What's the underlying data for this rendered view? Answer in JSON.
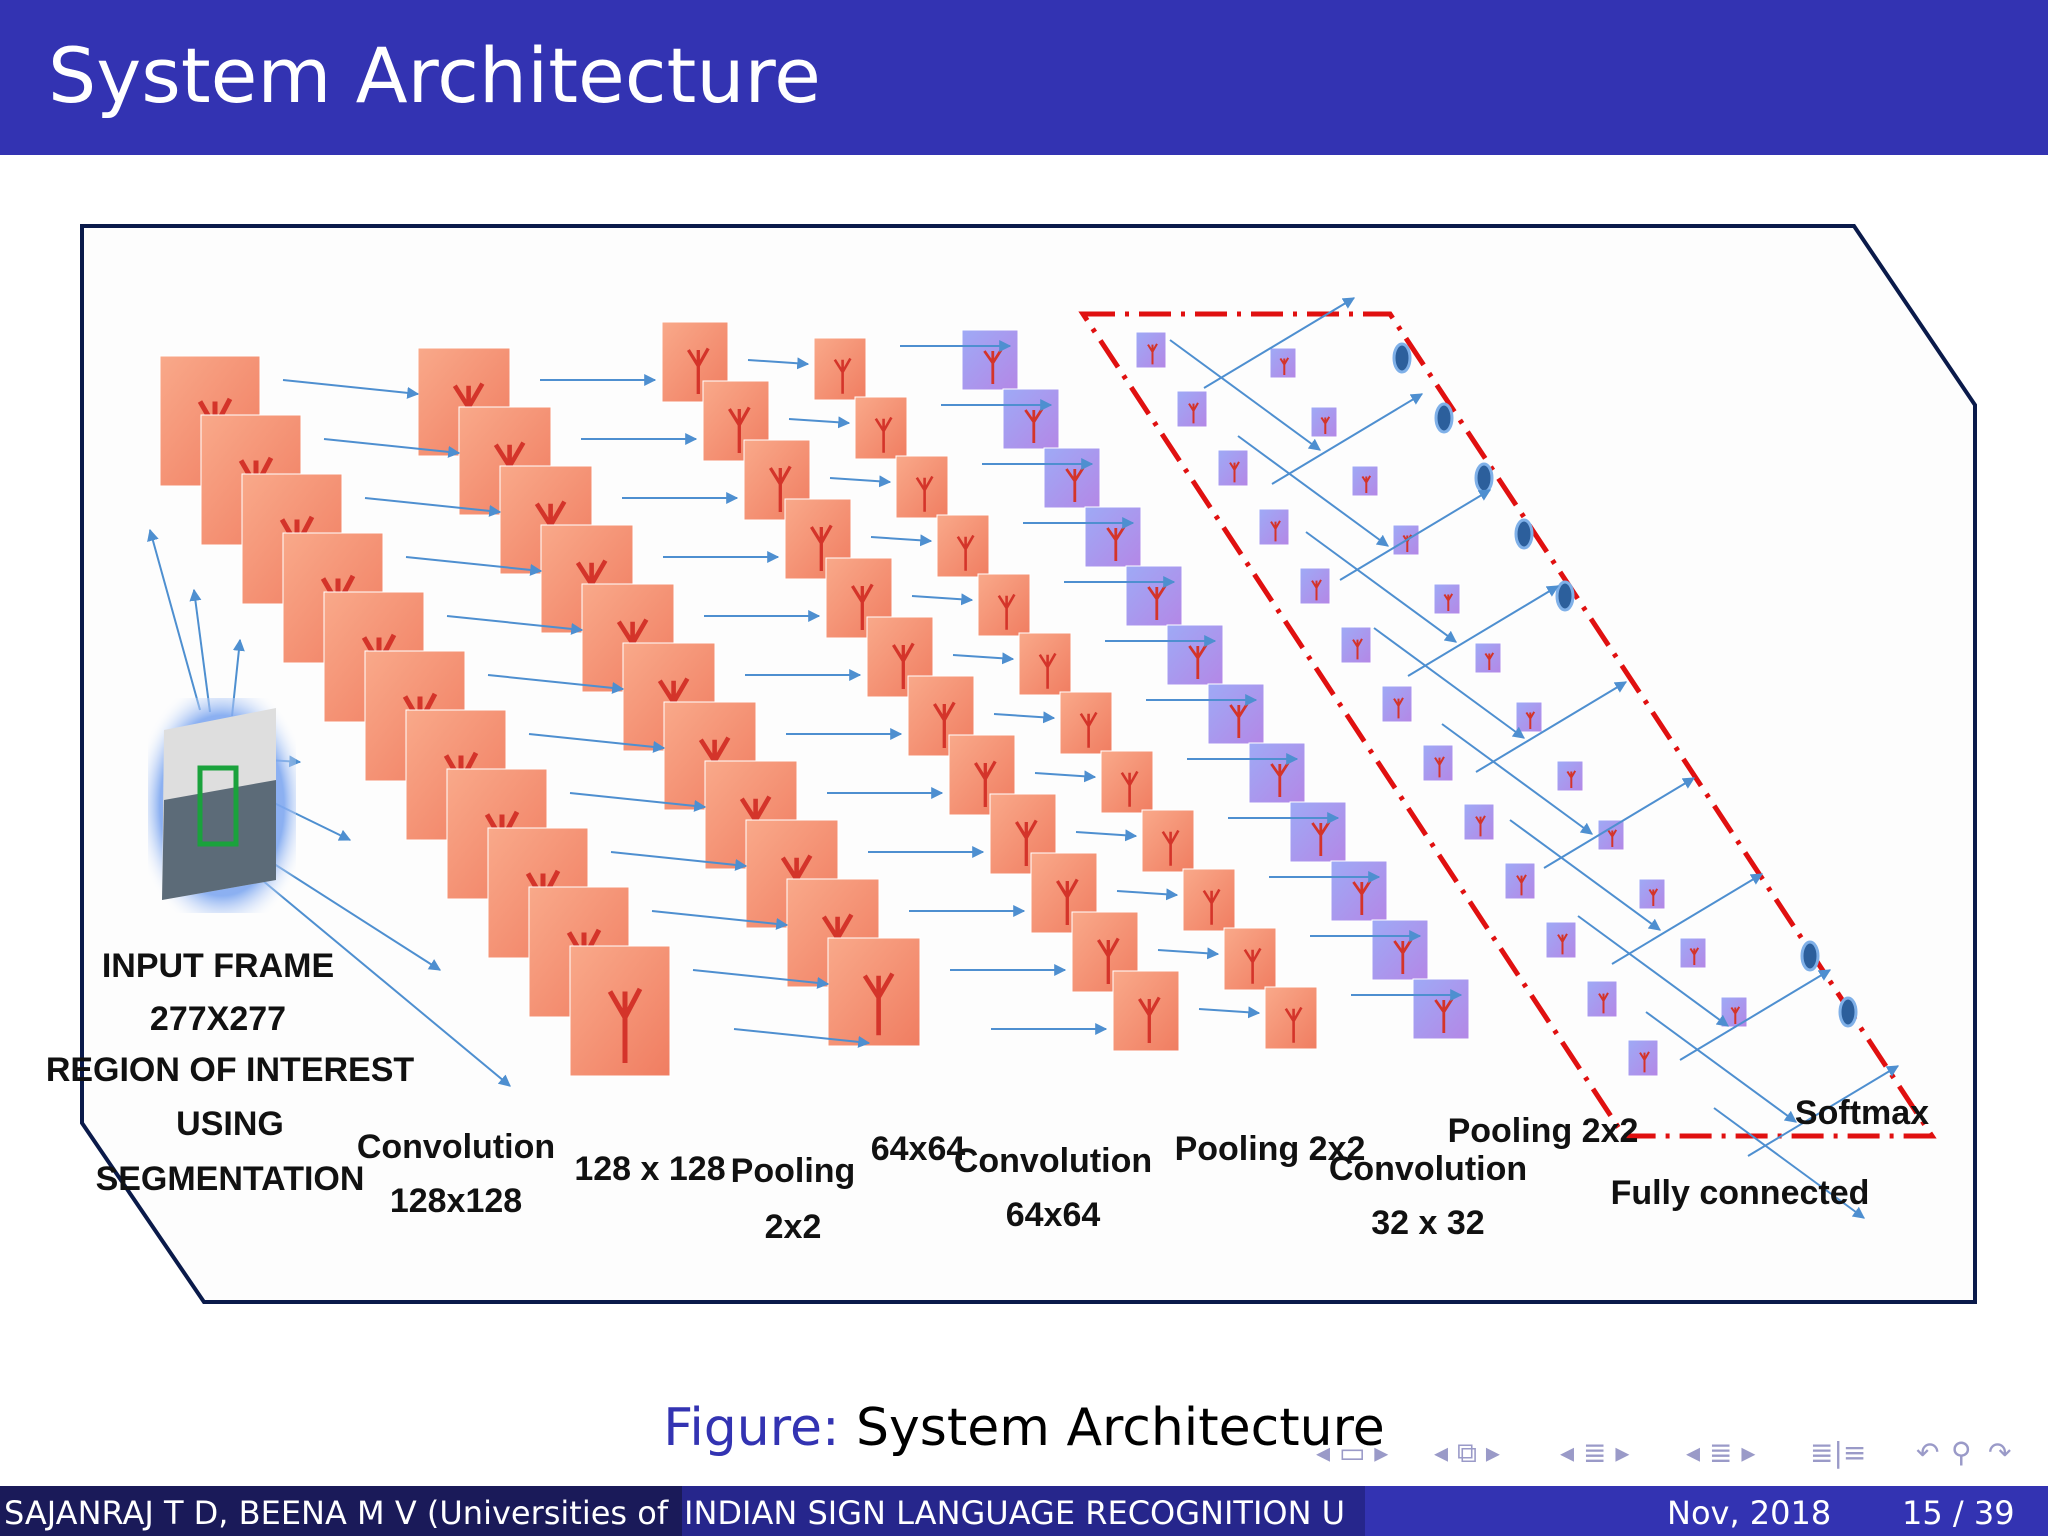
{
  "slide": {
    "title": "System Architecture"
  },
  "figure": {
    "labels": {
      "input": [
        "INPUT FRAME",
        "277X277",
        "REGION OF INTEREST",
        "USING",
        "SEGMENTATION"
      ],
      "conv1": [
        "Convolution",
        "128x128"
      ],
      "size128": "128 x 128",
      "pool1": [
        "Pooling",
        "2x2"
      ],
      "size64": "64x64",
      "conv2": [
        "Convolution",
        "64x64"
      ],
      "pool2": "Pooling 2x2",
      "conv3": [
        "Convolution",
        "32 x 32"
      ],
      "pool3": "Pooling 2x2",
      "softmax": "Softmax",
      "fc": "Fully connected"
    }
  },
  "caption": {
    "label": "Figure:",
    "text": "System Architecture"
  },
  "footer": {
    "authors": "SAJANRAJ T D, BEENA M V (Universities of",
    "title": "INDIAN SIGN LANGUAGE RECOGNITION U",
    "date": "Nov, 2018",
    "page": "15 / 39"
  },
  "nav_icons": [
    "frame-nav-icon",
    "section-nav-icon",
    "subsection-nav-icon",
    "slide-nav-icon",
    "align-icon",
    "undo-icon",
    "search-icon",
    "redo-icon"
  ]
}
